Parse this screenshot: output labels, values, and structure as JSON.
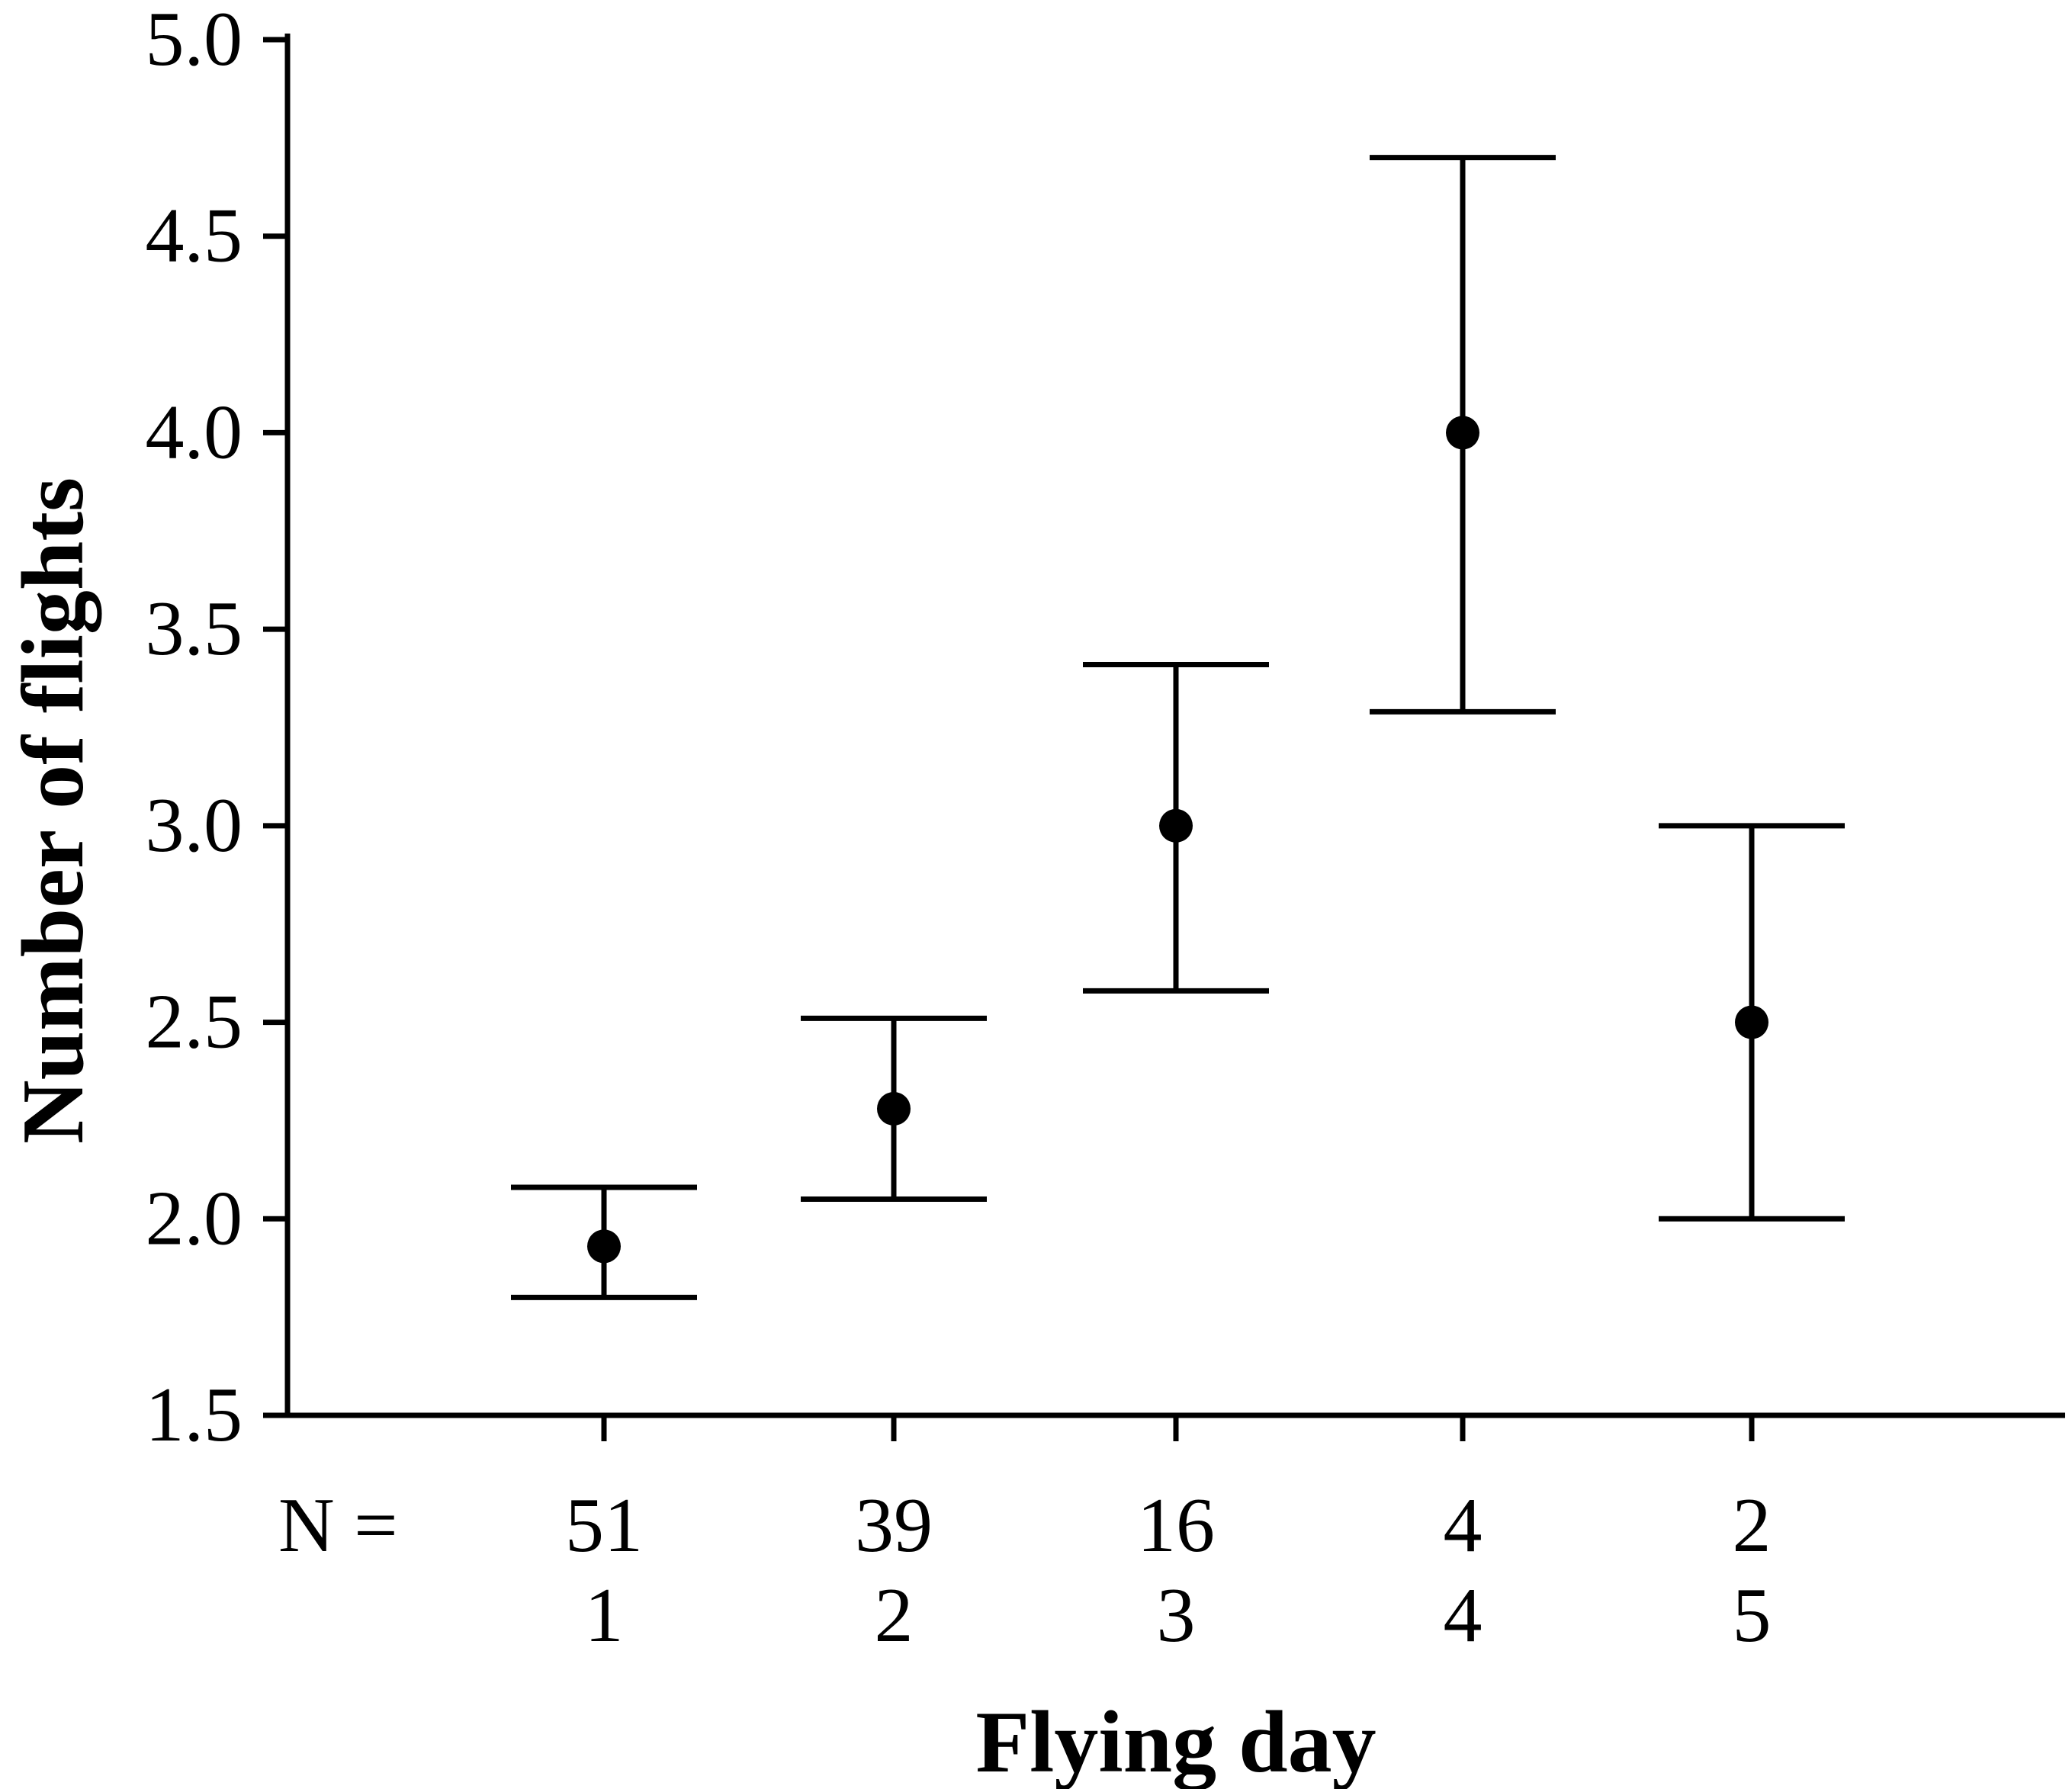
{
  "chart_data": {
    "type": "scatter",
    "xlabel": "Flying day",
    "ylabel": "Number of flights",
    "n_prefix": "N =",
    "categories": [
      "1",
      "2",
      "3",
      "4",
      "5"
    ],
    "n_values": [
      "51",
      "39",
      "16",
      "4",
      "2"
    ],
    "means": [
      1.93,
      2.28,
      3.0,
      4.0,
      2.5
    ],
    "upper": [
      2.08,
      2.51,
      3.41,
      4.7,
      3.0
    ],
    "lower": [
      1.8,
      2.05,
      2.58,
      3.29,
      2.0
    ],
    "ylim": [
      1.5,
      5.0
    ],
    "yticks": [
      "1.5",
      "2.0",
      "2.5",
      "3.0",
      "3.5",
      "4.0",
      "4.5",
      "5.0"
    ],
    "grid": false,
    "colors": {
      "ink": "#000000",
      "background": "#ffffff"
    }
  }
}
